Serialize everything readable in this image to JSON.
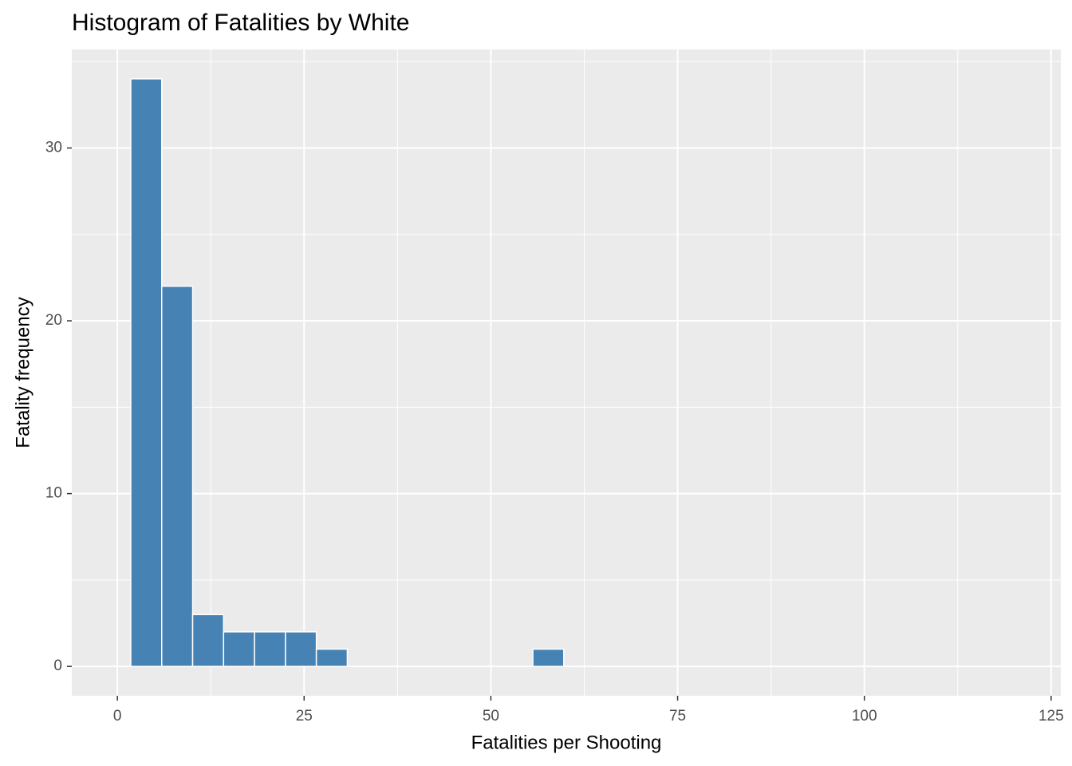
{
  "chart_data": {
    "type": "histogram",
    "title": "Histogram of Fatalities by White",
    "x_label": "Fatalities per Shooting",
    "y_label": "Fatality frequency",
    "bins": [
      1.8,
      5.94,
      10.08,
      14.22,
      18.36,
      22.5,
      26.64,
      30.78,
      34.92,
      39.06,
      43.2,
      47.34,
      51.48,
      55.62,
      59.76,
      63.9,
      68.04,
      72.18,
      76.32,
      80.46,
      84.6,
      88.74,
      92.88,
      97.02,
      101.16,
      105.3,
      109.44,
      113.58,
      117.72,
      121.86,
      126.0
    ],
    "counts": [
      34,
      22,
      3,
      2,
      2,
      2,
      1,
      0,
      0,
      0,
      0,
      0,
      0,
      1,
      0,
      0,
      0,
      0,
      0,
      0,
      0,
      0,
      0,
      0,
      0,
      0,
      0,
      0,
      0,
      0
    ],
    "color": "#4682b4",
    "xlim": [
      -6.1,
      126.3
    ],
    "xticks": [
      0,
      25,
      50,
      75,
      100,
      125
    ],
    "ylim": [
      -1.7,
      35.7
    ],
    "yticks": [
      0,
      10,
      20,
      30
    ],
    "grid": true
  }
}
